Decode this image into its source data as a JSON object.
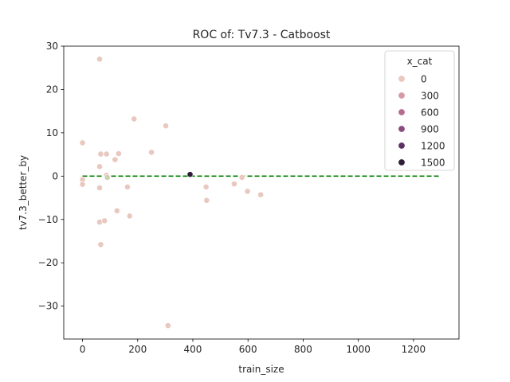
{
  "chart_data": {
    "type": "scatter",
    "title": "ROC of: Tv7.3 - Catboost",
    "xlabel": "train_size",
    "ylabel": "tv7.3_better_by",
    "xlim": [
      -68,
      1365
    ],
    "ylim": [
      -37.6,
      30
    ],
    "xticks": [
      0,
      200,
      400,
      600,
      800,
      1000,
      1200
    ],
    "yticks": [
      -30,
      -20,
      -10,
      0,
      10,
      20,
      30
    ],
    "grid": false,
    "legend": {
      "title": "x_cat",
      "placement": "top-right",
      "entries": [
        {
          "label": "0",
          "color": "#e8c8bf"
        },
        {
          "label": "300",
          "color": "#d59aa6"
        },
        {
          "label": "600",
          "color": "#b56a90"
        },
        {
          "label": "900",
          "color": "#8c4b7e"
        },
        {
          "label": "1200",
          "color": "#5c3262"
        },
        {
          "label": "1500",
          "color": "#2d1f38"
        }
      ]
    },
    "reference_line": {
      "x": [
        0,
        1300
      ],
      "y": [
        0,
        0
      ],
      "color": "#008000",
      "style": "dashed"
    },
    "points": [
      {
        "x": 0,
        "y": 7.7,
        "color": "#e8c8bf"
      },
      {
        "x": 0,
        "y": -0.8,
        "color": "#e8c8bf"
      },
      {
        "x": 0,
        "y": -1.9,
        "color": "#e8c8bf"
      },
      {
        "x": 62,
        "y": 27.0,
        "color": "#e8c8bf"
      },
      {
        "x": 62,
        "y": 2.2,
        "color": "#e8c8bf"
      },
      {
        "x": 62,
        "y": -2.7,
        "color": "#e8c8bf"
      },
      {
        "x": 66,
        "y": 5.1,
        "color": "#e8c8bf"
      },
      {
        "x": 62,
        "y": -10.6,
        "color": "#e8c8bf"
      },
      {
        "x": 66,
        "y": -15.8,
        "color": "#e8c8bf"
      },
      {
        "x": 80,
        "y": -10.3,
        "color": "#e8c8bf"
      },
      {
        "x": 87,
        "y": 5.1,
        "color": "#e8c8bf"
      },
      {
        "x": 87,
        "y": 0.2,
        "color": "#e8c8bf"
      },
      {
        "x": 90,
        "y": -0.3,
        "color": "#c8d2b0"
      },
      {
        "x": 118,
        "y": 3.8,
        "color": "#e8c8bf"
      },
      {
        "x": 125,
        "y": -8.0,
        "color": "#e8c8bf"
      },
      {
        "x": 131,
        "y": 5.2,
        "color": "#e8c8bf"
      },
      {
        "x": 163,
        "y": -2.5,
        "color": "#e8c8bf"
      },
      {
        "x": 171,
        "y": -9.2,
        "color": "#e8c8bf"
      },
      {
        "x": 187,
        "y": 13.2,
        "color": "#e8c8bf"
      },
      {
        "x": 250,
        "y": 5.5,
        "color": "#e8c8bf"
      },
      {
        "x": 302,
        "y": 11.6,
        "color": "#e8c8bf"
      },
      {
        "x": 310,
        "y": -34.5,
        "color": "#e8c8bf"
      },
      {
        "x": 390,
        "y": 0.4,
        "color": "#2d1f38"
      },
      {
        "x": 448,
        "y": -2.5,
        "color": "#e8c8bf"
      },
      {
        "x": 450,
        "y": -5.6,
        "color": "#e8c8bf"
      },
      {
        "x": 550,
        "y": -1.8,
        "color": "#e8c8bf"
      },
      {
        "x": 578,
        "y": -0.3,
        "color": "#e8c8bf"
      },
      {
        "x": 598,
        "y": -3.5,
        "color": "#e8c8bf"
      },
      {
        "x": 646,
        "y": -4.3,
        "color": "#e8c8bf"
      }
    ]
  }
}
